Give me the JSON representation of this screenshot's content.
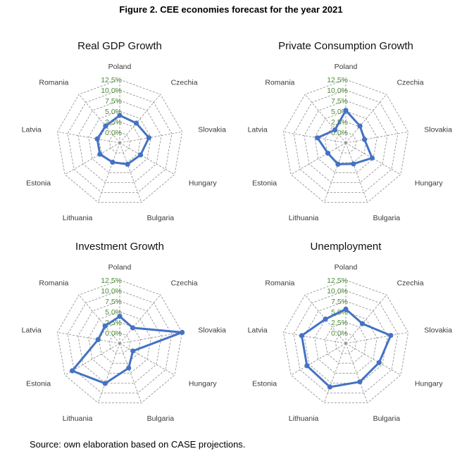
{
  "figure_title": "Figure 2. CEE economies forecast for the year 2021",
  "source_note": "Source: own elaboration based on CASE projections.",
  "colors": {
    "series": "#4472C4",
    "grid": "#8a8a8a",
    "tick": "#4E8A3A",
    "text": "#3a3a3a"
  },
  "chart_data": [
    {
      "type": "radar",
      "title": "Real GDP Growth",
      "categories": [
        "Poland",
        "Czechia",
        "Slovakia",
        "Hungary",
        "Bulgaria",
        "Lithuania",
        "Estonia",
        "Latvia",
        "Romania"
      ],
      "ticks": [
        "0.0%",
        "2.5%",
        "5.0%",
        "7.5%",
        "10.0%",
        "12.5%"
      ],
      "rlim": [
        -2.5,
        12.5
      ],
      "series": [
        {
          "values": [
            4.0,
            3.6,
            4.5,
            3.2,
            2.9,
            2.4,
            2.9,
            2.9,
            2.7
          ]
        }
      ]
    },
    {
      "type": "radar",
      "title": "Private Consumption Growth",
      "categories": [
        "Poland",
        "Czechia",
        "Slovakia",
        "Hungary",
        "Bulgaria",
        "Lithuania",
        "Estonia",
        "Latvia",
        "Romania"
      ],
      "ticks": [
        "0.0%",
        "2.5%",
        "5.0%",
        "7.5%",
        "10.0%",
        "12.5%"
      ],
      "rlim": [
        -2.5,
        12.5
      ],
      "series": [
        {
          "values": [
            5.2,
            2.7,
            2.0,
            4.7,
            2.8,
            2.9,
            2.4,
            4.3,
            1.5
          ]
        }
      ]
    },
    {
      "type": "radar",
      "title": "Investment Growth",
      "categories": [
        "Poland",
        "Czechia",
        "Slovakia",
        "Hungary",
        "Bulgaria",
        "Lithuania",
        "Estonia",
        "Latvia",
        "Romania"
      ],
      "ticks": [
        "0.0%",
        "2.5%",
        "5.0%",
        "7.5%",
        "10.0%",
        "12.5%"
      ],
      "rlim": [
        -2.5,
        12.5
      ],
      "series": [
        {
          "values": [
            3.9,
            2.3,
            12.5,
            1.1,
            3.7,
            7.6,
            10.5,
            2.7,
            2.9
          ]
        }
      ]
    },
    {
      "type": "radar",
      "title": "Unemployment",
      "categories": [
        "Poland",
        "Czechia",
        "Slovakia",
        "Hungary",
        "Bulgaria",
        "Lithuania",
        "Estonia",
        "Latvia",
        "Romania"
      ],
      "ticks": [
        "0.0%",
        "2.5%",
        "5.0%",
        "7.5%",
        "10.0%",
        "12.5%"
      ],
      "rlim": [
        -2.5,
        12.5
      ],
      "series": [
        {
          "values": [
            5.6,
            3.6,
            8.3,
            6.6,
            7.2,
            8.5,
            8.1,
            8.1,
            5.0
          ]
        }
      ]
    }
  ]
}
